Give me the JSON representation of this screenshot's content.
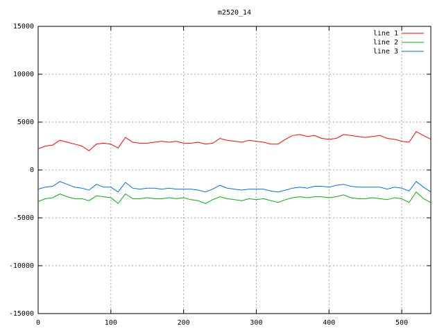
{
  "chart_data": {
    "type": "line",
    "title": "m2520_14",
    "x": [
      0,
      10,
      20,
      30,
      40,
      50,
      60,
      70,
      80,
      90,
      100,
      110,
      120,
      130,
      140,
      150,
      160,
      170,
      180,
      190,
      200,
      210,
      220,
      230,
      240,
      250,
      260,
      270,
      280,
      290,
      300,
      310,
      320,
      330,
      340,
      350,
      360,
      370,
      380,
      390,
      400,
      410,
      420,
      430,
      440,
      450,
      460,
      470,
      480,
      490,
      500,
      510,
      520,
      530,
      540
    ],
    "series": [
      {
        "name": "line 1",
        "color": "#ff0000",
        "values": [
          2200,
          2500,
          2600,
          3100,
          2900,
          2700,
          2500,
          2000,
          2700,
          2800,
          2700,
          2300,
          3400,
          2900,
          2800,
          2800,
          2900,
          3000,
          2900,
          3000,
          2800,
          2800,
          2900,
          2700,
          2800,
          3300,
          3100,
          3000,
          2900,
          3100,
          3000,
          2900,
          2700,
          2700,
          3200,
          3600,
          3700,
          3500,
          3600,
          3300,
          3200,
          3300,
          3700,
          3600,
          3500,
          3400,
          3500,
          3600,
          3300,
          3200,
          3000,
          2900,
          4000,
          3600,
          3200
        ]
      },
      {
        "name": "line 2",
        "color": "#00b000",
        "values": [
          -3300,
          -3000,
          -2900,
          -2500,
          -2800,
          -3000,
          -3000,
          -3200,
          -2700,
          -2800,
          -2900,
          -3500,
          -2500,
          -3000,
          -3000,
          -2900,
          -3000,
          -3000,
          -2900,
          -3000,
          -2900,
          -3100,
          -3200,
          -3500,
          -3100,
          -2800,
          -3000,
          -3100,
          -3200,
          -3000,
          -3100,
          -3000,
          -3200,
          -3400,
          -3100,
          -2900,
          -2800,
          -2900,
          -2800,
          -2800,
          -2900,
          -2800,
          -2600,
          -2900,
          -3000,
          -3000,
          -2900,
          -3000,
          -3100,
          -2900,
          -3000,
          -3400,
          -2300,
          -3000,
          -3400
        ]
      },
      {
        "name": "line 3",
        "color": "#0070e0",
        "values": [
          -2000,
          -1800,
          -1700,
          -1200,
          -1500,
          -1800,
          -1900,
          -2100,
          -1500,
          -1800,
          -1800,
          -2300,
          -1300,
          -1900,
          -2000,
          -1900,
          -1900,
          -2000,
          -1900,
          -2000,
          -2000,
          -2000,
          -2100,
          -2300,
          -2000,
          -1600,
          -1900,
          -2000,
          -2100,
          -2000,
          -2000,
          -2000,
          -2200,
          -2300,
          -2100,
          -1900,
          -1800,
          -1900,
          -1700,
          -1700,
          -1800,
          -1600,
          -1500,
          -1700,
          -1800,
          -1800,
          -1800,
          -1800,
          -2000,
          -1800,
          -1900,
          -2200,
          -1200,
          -1800,
          -2300
        ]
      }
    ],
    "xlim": [
      0,
      540
    ],
    "xticks": [
      0,
      100,
      200,
      300,
      400,
      500
    ],
    "ylim": [
      -15000,
      15000
    ],
    "yticks": [
      -15000,
      -10000,
      -5000,
      0,
      5000,
      10000,
      15000
    ],
    "grid": true,
    "legend": "top-right"
  }
}
